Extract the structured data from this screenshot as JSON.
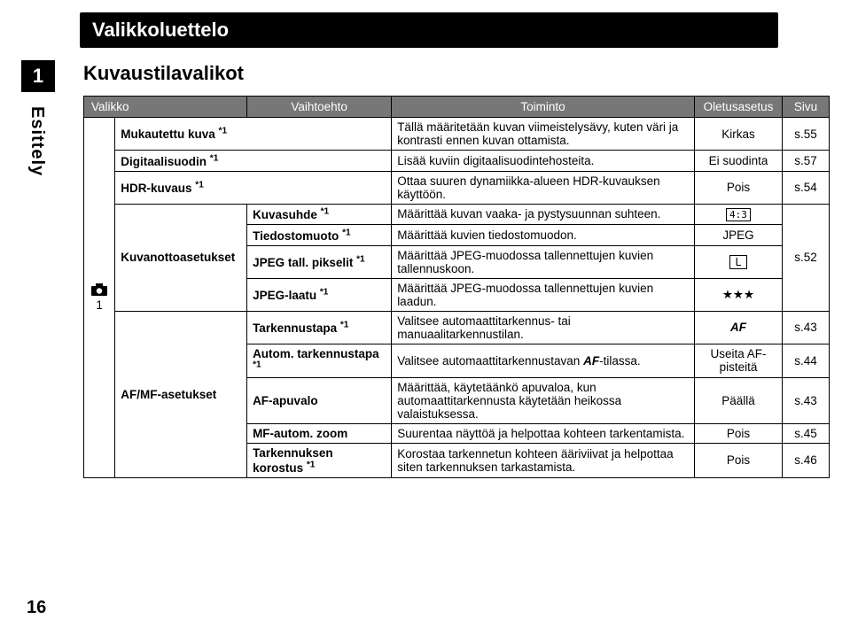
{
  "chapter_num": "1",
  "sidebar_label": "Esittely",
  "page_number": "16",
  "title": "Valikkoluettelo",
  "subtitle": "Kuvaustilavalikot",
  "headers": {
    "menu": "Valikko",
    "option": "Vaihtoehto",
    "function": "Toiminto",
    "default": "Oletusasetus",
    "page": "Sivu"
  },
  "icon_row": "1",
  "rows": {
    "r1": {
      "menu": "Mukautettu kuva *1",
      "func": "Tällä määritetään kuvan viimeistelysävy, kuten väri ja kontrasti ennen kuvan ottamista.",
      "def": "Kirkas",
      "page": "s.55"
    },
    "r2": {
      "menu": "Digitaalisuodin *1",
      "func": "Lisää kuviin digitaalisuodintehosteita.",
      "def": "Ei suodinta",
      "page": "s.57"
    },
    "r3": {
      "menu": "HDR-kuvaus *1",
      "func": "Ottaa suuren dynamiikka-alueen HDR-kuvauksen käyttöön.",
      "def": "Pois",
      "page": "s.54"
    },
    "grp1_label": "Kuvanottoasetukset",
    "r4": {
      "opt": "Kuvasuhde *1",
      "func": "Määrittää kuvan vaaka- ja pystysuunnan suhteen.",
      "def": "4:3"
    },
    "r5": {
      "opt": "Tiedostomuoto *1",
      "func": "Määrittää kuvien tiedostomuodon.",
      "def": "JPEG"
    },
    "r6": {
      "opt": "JPEG tall. pikselit *1",
      "func": "Määrittää JPEG-muodossa tallennettujen kuvien tallennuskoon.",
      "def": "L",
      "page": "s.52"
    },
    "r7": {
      "opt": "JPEG-laatu *1",
      "func": "Määrittää JPEG-muodossa tallennettujen kuvien laadun.",
      "def": "★★★"
    },
    "grp2_label": "AF/MF-asetukset",
    "r8": {
      "opt": "Tarkennustapa *1",
      "func": "Valitsee automaattitarkennus- tai manuaalitarkennustilan.",
      "def": "AF",
      "page": "s.43"
    },
    "r9": {
      "opt": "Autom. tarkennustapa *1",
      "func_a": "Valitsee automaattitarkennustavan ",
      "func_b": "AF",
      "func_c": "-tilassa.",
      "def": "Useita AF-pisteitä",
      "page": "s.44"
    },
    "r10": {
      "opt": "AF-apuvalo",
      "func": "Määrittää, käytetäänkö apuvaloa, kun automaattitarkennusta käytetään heikossa valaistuksessa.",
      "def": "Päällä",
      "page": "s.43"
    },
    "r11": {
      "opt": "MF-autom. zoom",
      "func": "Suurentaa näyttöä ja helpottaa kohteen tarkentamista.",
      "def": "Pois",
      "page": "s.45"
    },
    "r12": {
      "opt": "Tarkennuksen korostus *1",
      "func": "Korostaa tarkennetun kohteen ääriviivat ja helpottaa siten tarkennuksen tarkastamista.",
      "def": "Pois",
      "page": "s.46"
    }
  }
}
